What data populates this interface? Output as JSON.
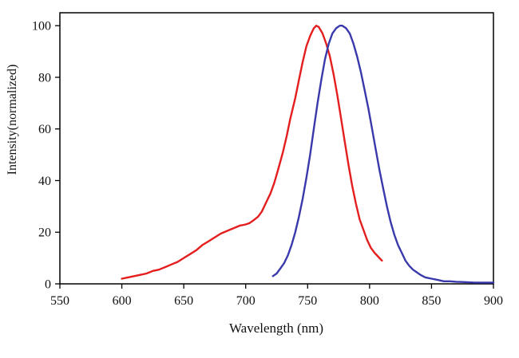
{
  "figure": {
    "background": "#ffffff",
    "frame_color": "#000000",
    "text_color": "#111111"
  },
  "chart_data": {
    "type": "line",
    "title": "",
    "xlabel": "Wavelength (nm)",
    "ylabel": "Intensity(normalized)",
    "xlim": [
      550,
      900
    ],
    "ylim": [
      0,
      105
    ],
    "xticks": [
      550,
      600,
      650,
      700,
      750,
      800,
      850,
      900
    ],
    "yticks": [
      0,
      20,
      40,
      60,
      80,
      100
    ],
    "grid": false,
    "legend": "none",
    "series": [
      {
        "name": "red curve",
        "color": "#e41e1e",
        "x": [
          600,
          605,
          610,
          615,
          620,
          625,
          630,
          635,
          640,
          645,
          650,
          655,
          660,
          665,
          670,
          675,
          680,
          685,
          690,
          695,
          700,
          703,
          706,
          710,
          713,
          716,
          720,
          723,
          726,
          730,
          733,
          736,
          740,
          743,
          746,
          749,
          752,
          755,
          757,
          759,
          762,
          765,
          768,
          771,
          774,
          777,
          780,
          783,
          786,
          789,
          792,
          795,
          798,
          801,
          804,
          807,
          810
        ],
        "y": [
          2,
          2.5,
          3,
          3.5,
          4,
          5,
          5.5,
          6.5,
          7.5,
          8.5,
          10,
          11.5,
          13,
          15,
          16.5,
          18,
          19.5,
          20.5,
          21.5,
          22.5,
          23,
          23.5,
          24.5,
          26,
          28,
          31,
          35,
          39,
          44,
          51,
          57,
          64,
          72,
          79,
          86,
          92,
          96,
          99,
          100,
          99.5,
          97,
          93,
          88,
          81,
          73,
          64,
          55,
          46,
          38,
          31,
          25,
          21,
          17,
          14,
          12,
          10.5,
          9
        ]
      },
      {
        "name": "blue curve",
        "color": "#3939ac",
        "x": [
          722,
          725,
          728,
          731,
          734,
          737,
          740,
          743,
          746,
          749,
          752,
          755,
          758,
          761,
          764,
          767,
          770,
          773,
          776,
          778,
          781,
          784,
          787,
          790,
          793,
          796,
          799,
          802,
          805,
          808,
          811,
          814,
          817,
          820,
          823,
          826,
          829,
          832,
          835,
          838,
          841,
          845,
          850,
          855,
          860,
          865,
          870,
          875,
          880,
          885,
          890,
          895,
          900
        ],
        "y": [
          3,
          4,
          6,
          8,
          11,
          15,
          20,
          26,
          33,
          41,
          50,
          60,
          70,
          79,
          87,
          93,
          97,
          99,
          100,
          100,
          99,
          97,
          93,
          88,
          82,
          75,
          68,
          60,
          52,
          44,
          37,
          30,
          24,
          19,
          15,
          12,
          9,
          7,
          5.5,
          4.5,
          3.5,
          2.5,
          2,
          1.5,
          1,
          1,
          0.8,
          0.7,
          0.6,
          0.5,
          0.5,
          0.5,
          0.5
        ]
      }
    ]
  }
}
